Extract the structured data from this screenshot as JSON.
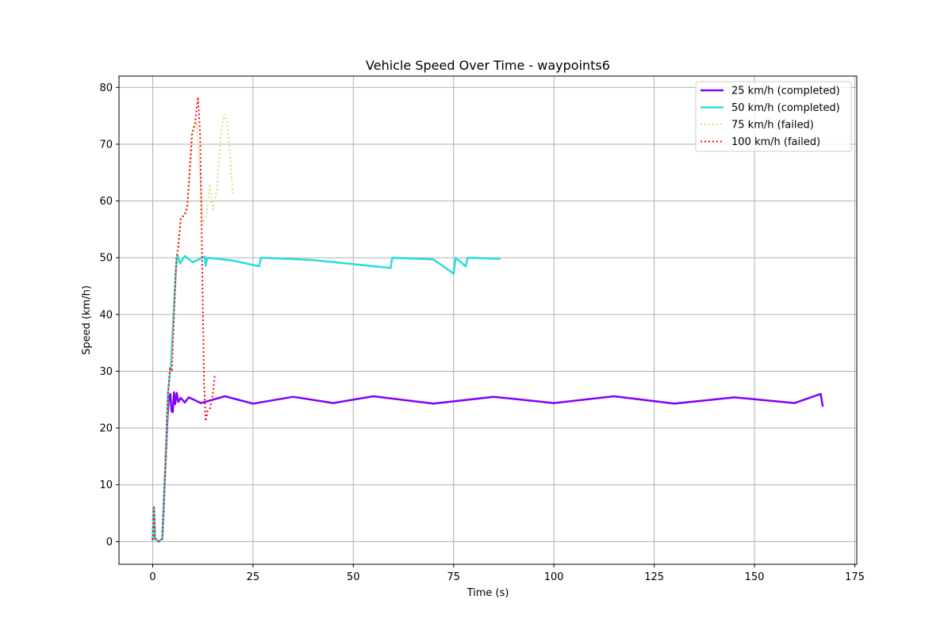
{
  "chart_data": {
    "type": "line",
    "title": "Vehicle Speed Over Time - waypoints6",
    "xlabel": "Time (s)",
    "ylabel": "Speed (km/h)",
    "xlim": [
      -8.4,
      175.5
    ],
    "ylim": [
      -4,
      82
    ],
    "xticks": [
      0,
      25,
      50,
      75,
      100,
      125,
      150,
      175
    ],
    "yticks": [
      0,
      10,
      20,
      30,
      40,
      50,
      60,
      70,
      80
    ],
    "grid": true,
    "legend_position": "top-right",
    "series": [
      {
        "name": "25 km/h (completed)",
        "color": "#8000ff",
        "style": "solid",
        "points": [
          [
            0,
            0.3
          ],
          [
            0.3,
            6
          ],
          [
            0.6,
            0.5
          ],
          [
            1.5,
            0
          ],
          [
            2.4,
            0.5
          ],
          [
            3.2,
            14
          ],
          [
            3.7,
            22
          ],
          [
            4.0,
            25
          ],
          [
            4.4,
            26
          ],
          [
            4.7,
            23
          ],
          [
            5.0,
            22.8
          ],
          [
            5.3,
            26.3
          ],
          [
            5.6,
            24.2
          ],
          [
            6.0,
            26.2
          ],
          [
            6.4,
            24.6
          ],
          [
            7,
            25.3
          ],
          [
            8,
            24.5
          ],
          [
            9,
            25.4
          ],
          [
            12,
            24.4
          ],
          [
            18,
            25.6
          ],
          [
            25,
            24.3
          ],
          [
            35,
            25.5
          ],
          [
            45,
            24.4
          ],
          [
            55,
            25.6
          ],
          [
            70,
            24.3
          ],
          [
            85,
            25.5
          ],
          [
            100,
            24.4
          ],
          [
            115,
            25.6
          ],
          [
            130,
            24.3
          ],
          [
            145,
            25.4
          ],
          [
            160,
            24.4
          ],
          [
            166.5,
            26
          ],
          [
            167,
            23.9
          ]
        ]
      },
      {
        "name": "50 km/h (completed)",
        "color": "#2adddd",
        "style": "solid",
        "points": [
          [
            0,
            0.3
          ],
          [
            0.3,
            6
          ],
          [
            0.6,
            0.5
          ],
          [
            1.5,
            0
          ],
          [
            2.4,
            0.5
          ],
          [
            3.2,
            14
          ],
          [
            3.8,
            26
          ],
          [
            4.5,
            31
          ],
          [
            5.2,
            40
          ],
          [
            5.8,
            48
          ],
          [
            6.2,
            50.5
          ],
          [
            6.8,
            49
          ],
          [
            8,
            50.3
          ],
          [
            10,
            49.2
          ],
          [
            13,
            50.2
          ],
          [
            13.2,
            48.6
          ],
          [
            13.6,
            50
          ],
          [
            20,
            49.5
          ],
          [
            26.5,
            48.5
          ],
          [
            27,
            50
          ],
          [
            40,
            49.6
          ],
          [
            59.3,
            48.2
          ],
          [
            59.7,
            50
          ],
          [
            70,
            49.7
          ],
          [
            75,
            47.2
          ],
          [
            75.5,
            50
          ],
          [
            78,
            48.5
          ],
          [
            78.5,
            50
          ],
          [
            86.5,
            49.8
          ]
        ]
      },
      {
        "name": "75 km/h (failed)",
        "color": "#d4dd80",
        "style": "dotted",
        "points": [
          [
            0,
            0.3
          ],
          [
            0.3,
            6
          ],
          [
            0.6,
            0.5
          ],
          [
            1.5,
            0
          ],
          [
            2.4,
            0.5
          ],
          [
            3.2,
            14
          ],
          [
            3.8,
            26
          ],
          [
            4.5,
            31
          ],
          [
            5.2,
            40
          ],
          [
            6.0,
            50
          ],
          [
            7.0,
            57
          ],
          [
            8.5,
            58.5
          ],
          [
            10,
            72
          ],
          [
            11,
            74
          ],
          [
            12.5,
            56
          ],
          [
            13.5,
            58
          ],
          [
            14.2,
            63
          ],
          [
            15.0,
            58.5
          ],
          [
            16.0,
            62
          ],
          [
            17.0,
            72
          ],
          [
            17.8,
            75.2
          ],
          [
            18.5,
            74
          ],
          [
            19.3,
            68
          ],
          [
            20.0,
            61
          ]
        ]
      },
      {
        "name": "100 km/h (failed)",
        "color": "#ff0000",
        "style": "dotted",
        "points": [
          [
            0,
            0.3
          ],
          [
            0.3,
            6
          ],
          [
            0.6,
            0.5
          ],
          [
            1.5,
            0
          ],
          [
            2.4,
            0.5
          ],
          [
            3.2,
            14
          ],
          [
            3.8,
            26
          ],
          [
            4.3,
            30.5
          ],
          [
            4.8,
            30.2
          ],
          [
            5.3,
            40
          ],
          [
            5.9,
            50
          ],
          [
            6.4,
            51.8
          ],
          [
            7.0,
            57
          ],
          [
            8.0,
            57.5
          ],
          [
            8.6,
            59
          ],
          [
            9.2,
            65
          ],
          [
            9.8,
            72
          ],
          [
            10.5,
            73.5
          ],
          [
            11.3,
            78.3
          ],
          [
            11.8,
            72
          ],
          [
            12.3,
            50
          ],
          [
            12.8,
            28
          ],
          [
            13.2,
            21.2
          ],
          [
            13.7,
            23
          ],
          [
            14.3,
            23.5
          ],
          [
            15.0,
            26
          ],
          [
            15.5,
            29.5
          ]
        ]
      }
    ]
  }
}
